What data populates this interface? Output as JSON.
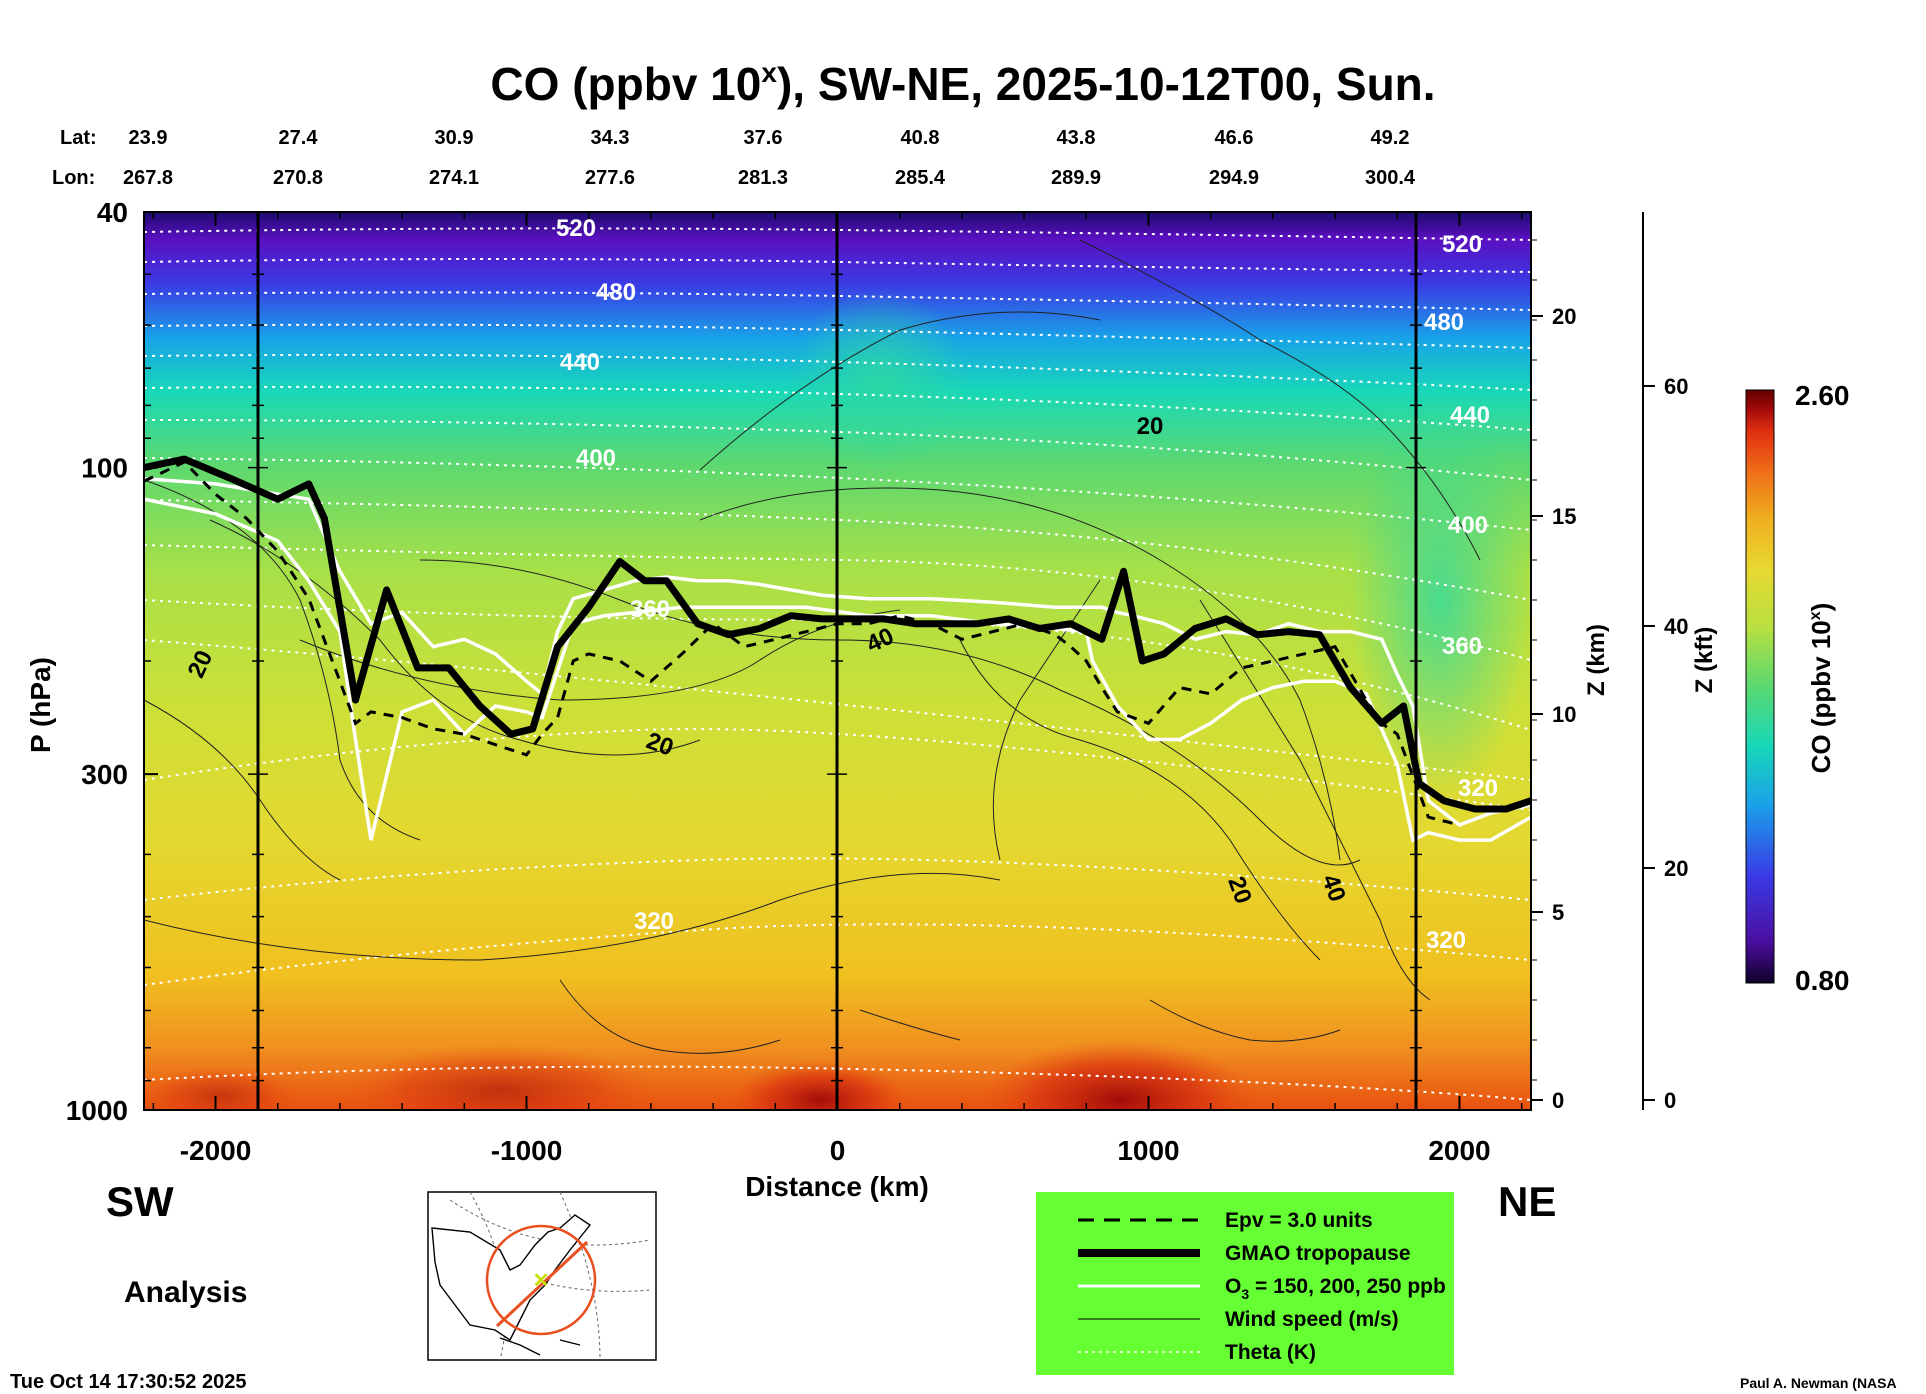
{
  "title_main": "CO (ppbv 10",
  "title_sup": "x",
  "title_rest": "), SW-NE, 2025-10-12T00, Sun.",
  "lat_label": "Lat:",
  "lon_label": "Lon:",
  "lats": [
    "23.9",
    "27.4",
    "30.9",
    "34.3",
    "37.6",
    "40.8",
    "43.8",
    "46.6",
    "49.2"
  ],
  "lons": [
    "267.8",
    "270.8",
    "274.1",
    "277.6",
    "281.3",
    "285.4",
    "289.9",
    "294.9",
    "300.4"
  ],
  "y_axis_label": "P (hPa)",
  "y_ticks": [
    "40",
    "100",
    "300",
    "1000"
  ],
  "z_km_label": "Z (km)",
  "z_km_ticks": [
    "20",
    "15",
    "10",
    "5",
    "0"
  ],
  "z_kft_label": "Z (kft)",
  "z_kft_ticks": [
    "60",
    "40",
    "20",
    "0"
  ],
  "x_axis_label": "Distance (km)",
  "x_ticks": [
    "-2000",
    "-1000",
    "0",
    "1000",
    "2000"
  ],
  "sw_label": "SW",
  "ne_label": "NE",
  "analysis_label": "Analysis",
  "timestamp": "Tue Oct 14 17:30:52 2025",
  "credit": "Paul A. Newman (NASA",
  "colorbar": {
    "label_main": "CO (ppbv 10",
    "label_sup": "x",
    "label_rest": ")",
    "max_label": "2.60",
    "min_label": "0.80",
    "colors": [
      "#200040",
      "#4a0fa0",
      "#3a3ae6",
      "#1aa0e8",
      "#18d8b8",
      "#5ad870",
      "#b8e040",
      "#e8d830",
      "#f0b020",
      "#f07018",
      "#e03010",
      "#a00808",
      "#600000"
    ]
  },
  "theta_labels": [
    "520",
    "480",
    "440",
    "400",
    "360",
    "320",
    "520",
    "480",
    "440",
    "400",
    "360",
    "320",
    "320"
  ],
  "wind_labels": [
    "20",
    "20",
    "20",
    "40",
    "20",
    "40"
  ],
  "legend": {
    "bg": "#66ff33",
    "items": [
      {
        "style": "dashed",
        "label": "Epv = 3.0 units"
      },
      {
        "style": "thick",
        "label": "GMAO tropopause"
      },
      {
        "style": "white",
        "label": "O",
        "sub": "3",
        "rest": " = 150, 200, 250 ppb"
      },
      {
        "style": "thin",
        "label": "Wind speed (m/s)"
      },
      {
        "style": "dotted",
        "label": "Theta (K)"
      }
    ]
  },
  "chart_data": {
    "type": "heatmap",
    "title": "CO (ppbv 10^x), SW-NE, 2025-10-12T00, Sun.",
    "xlabel": "Distance (km)",
    "ylabel": "P (hPa)",
    "xlim": [
      -2230,
      2230
    ],
    "ylim": [
      1000,
      40
    ],
    "y_scale": "log",
    "colorbar_range": [
      0.8,
      2.6
    ],
    "tropopause": {
      "x": [
        -2230,
        -2100,
        -1950,
        -1800,
        -1700,
        -1650,
        -1550,
        -1450,
        -1350,
        -1250,
        -1150,
        -1050,
        -980,
        -900,
        -800,
        -700,
        -620,
        -550,
        -450,
        -350,
        -250,
        -150,
        -50,
        50,
        150,
        250,
        350,
        450,
        550,
        650,
        750,
        850,
        920,
        980,
        1050,
        1150,
        1250,
        1350,
        1450,
        1550,
        1650,
        1750,
        1820,
        1870,
        1950,
        2050,
        2150,
        2230
      ],
      "p": [
        100,
        97,
        104,
        112,
        106,
        120,
        230,
        155,
        205,
        205,
        235,
        260,
        255,
        190,
        165,
        140,
        150,
        150,
        175,
        182,
        178,
        170,
        172,
        172,
        172,
        175,
        175,
        175,
        172,
        178,
        175,
        185,
        145,
        200,
        195,
        178,
        172,
        182,
        180,
        182,
        220,
        250,
        235,
        310,
        330,
        340,
        340,
        330
      ]
    },
    "o3_150": {
      "x": [
        -2230,
        -2000,
        -1800,
        -1700,
        -1600,
        -1500,
        -1400,
        -1300,
        -1200,
        -1100,
        -1000,
        -950,
        -900,
        -850,
        -750,
        -650,
        -550,
        -450,
        -350,
        -250,
        -150,
        -50,
        100,
        300,
        500,
        700,
        800,
        850,
        900,
        950,
        1050,
        1150,
        1250,
        1350,
        1450,
        1550,
        1650,
        1750,
        1800,
        1850,
        1900,
        2000,
        2100,
        2230
      ],
      "p": [
        104,
        106,
        110,
        112,
        145,
        175,
        168,
        190,
        185,
        195,
        215,
        225,
        180,
        160,
        155,
        150,
        148,
        150,
        150,
        152,
        155,
        158,
        160,
        160,
        162,
        165,
        165,
        165,
        168,
        170,
        175,
        185,
        180,
        182,
        175,
        180,
        180,
        185,
        210,
        235,
        330,
        360,
        345,
        335
      ]
    },
    "o3_250": {
      "x": [
        -2230,
        -2000,
        -1800,
        -1700,
        -1600,
        -1550,
        -1500,
        -1400,
        -1300,
        -1200,
        -1100,
        -1000,
        -950,
        -850,
        -750,
        -650,
        -500,
        -300,
        -100,
        100,
        300,
        500,
        700,
        800,
        820,
        900,
        1000,
        1100,
        1200,
        1300,
        1400,
        1500,
        1600,
        1700,
        1800,
        1850,
        1900,
        2000,
        2100,
        2230
      ],
      "p": [
        112,
        118,
        130,
        150,
        180,
        265,
        380,
        240,
        230,
        260,
        235,
        240,
        245,
        175,
        170,
        168,
        165,
        165,
        165,
        170,
        170,
        175,
        178,
        180,
        200,
        235,
        265,
        265,
        250,
        230,
        220,
        215,
        215,
        225,
        290,
        380,
        370,
        380,
        380,
        350
      ]
    },
    "epv_3": {
      "x": [
        -2230,
        -2100,
        -2000,
        -1900,
        -1800,
        -1700,
        -1600,
        -1550,
        -1500,
        -1400,
        -1300,
        -1200,
        -1100,
        -1000,
        -950,
        -900,
        -850,
        -800,
        -700,
        -600,
        -500,
        -400,
        -300,
        -200,
        -100,
        0,
        100,
        200,
        300,
        400,
        500,
        600,
        700,
        750,
        800,
        850,
        900,
        1000,
        1100,
        1200,
        1300,
        1400,
        1500,
        1600,
        1700,
        1750,
        1800,
        1900,
        2000
      ],
      "p": [
        105,
        98,
        110,
        120,
        135,
        160,
        215,
        250,
        240,
        245,
        255,
        260,
        270,
        280,
        260,
        245,
        200,
        195,
        200,
        215,
        195,
        175,
        190,
        185,
        180,
        175,
        175,
        170,
        175,
        185,
        180,
        175,
        182,
        190,
        200,
        220,
        240,
        250,
        220,
        225,
        205,
        200,
        195,
        190,
        230,
        250,
        260,
        350,
        360
      ]
    }
  }
}
